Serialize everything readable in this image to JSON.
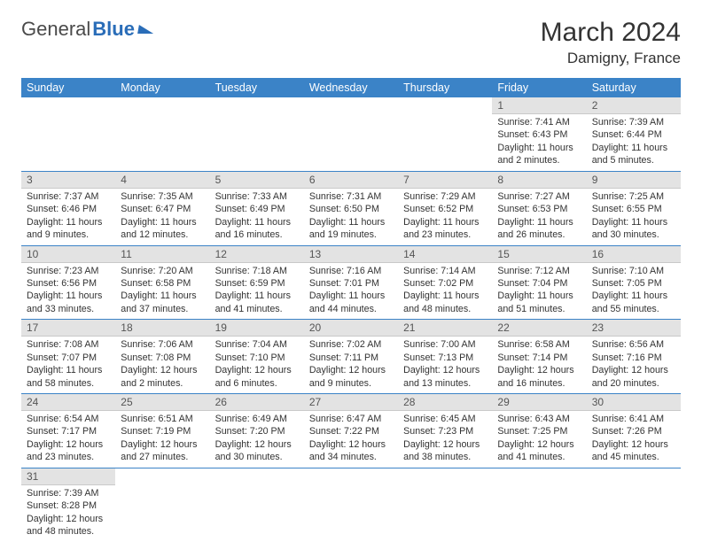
{
  "logo": {
    "part1": "General",
    "part2": "Blue"
  },
  "title": "March 2024",
  "location": "Damigny, France",
  "colors": {
    "header_bg": "#3b83c7",
    "header_fg": "#ffffff",
    "daynum_bg": "#e3e3e3",
    "row_border": "#3b83c7",
    "logo_accent": "#2a6db8"
  },
  "weekdays": [
    "Sunday",
    "Monday",
    "Tuesday",
    "Wednesday",
    "Thursday",
    "Friday",
    "Saturday"
  ],
  "weeks": [
    [
      null,
      null,
      null,
      null,
      null,
      {
        "n": "1",
        "sunrise": "Sunrise: 7:41 AM",
        "sunset": "Sunset: 6:43 PM",
        "daylight": "Daylight: 11 hours and 2 minutes."
      },
      {
        "n": "2",
        "sunrise": "Sunrise: 7:39 AM",
        "sunset": "Sunset: 6:44 PM",
        "daylight": "Daylight: 11 hours and 5 minutes."
      }
    ],
    [
      {
        "n": "3",
        "sunrise": "Sunrise: 7:37 AM",
        "sunset": "Sunset: 6:46 PM",
        "daylight": "Daylight: 11 hours and 9 minutes."
      },
      {
        "n": "4",
        "sunrise": "Sunrise: 7:35 AM",
        "sunset": "Sunset: 6:47 PM",
        "daylight": "Daylight: 11 hours and 12 minutes."
      },
      {
        "n": "5",
        "sunrise": "Sunrise: 7:33 AM",
        "sunset": "Sunset: 6:49 PM",
        "daylight": "Daylight: 11 hours and 16 minutes."
      },
      {
        "n": "6",
        "sunrise": "Sunrise: 7:31 AM",
        "sunset": "Sunset: 6:50 PM",
        "daylight": "Daylight: 11 hours and 19 minutes."
      },
      {
        "n": "7",
        "sunrise": "Sunrise: 7:29 AM",
        "sunset": "Sunset: 6:52 PM",
        "daylight": "Daylight: 11 hours and 23 minutes."
      },
      {
        "n": "8",
        "sunrise": "Sunrise: 7:27 AM",
        "sunset": "Sunset: 6:53 PM",
        "daylight": "Daylight: 11 hours and 26 minutes."
      },
      {
        "n": "9",
        "sunrise": "Sunrise: 7:25 AM",
        "sunset": "Sunset: 6:55 PM",
        "daylight": "Daylight: 11 hours and 30 minutes."
      }
    ],
    [
      {
        "n": "10",
        "sunrise": "Sunrise: 7:23 AM",
        "sunset": "Sunset: 6:56 PM",
        "daylight": "Daylight: 11 hours and 33 minutes."
      },
      {
        "n": "11",
        "sunrise": "Sunrise: 7:20 AM",
        "sunset": "Sunset: 6:58 PM",
        "daylight": "Daylight: 11 hours and 37 minutes."
      },
      {
        "n": "12",
        "sunrise": "Sunrise: 7:18 AM",
        "sunset": "Sunset: 6:59 PM",
        "daylight": "Daylight: 11 hours and 41 minutes."
      },
      {
        "n": "13",
        "sunrise": "Sunrise: 7:16 AM",
        "sunset": "Sunset: 7:01 PM",
        "daylight": "Daylight: 11 hours and 44 minutes."
      },
      {
        "n": "14",
        "sunrise": "Sunrise: 7:14 AM",
        "sunset": "Sunset: 7:02 PM",
        "daylight": "Daylight: 11 hours and 48 minutes."
      },
      {
        "n": "15",
        "sunrise": "Sunrise: 7:12 AM",
        "sunset": "Sunset: 7:04 PM",
        "daylight": "Daylight: 11 hours and 51 minutes."
      },
      {
        "n": "16",
        "sunrise": "Sunrise: 7:10 AM",
        "sunset": "Sunset: 7:05 PM",
        "daylight": "Daylight: 11 hours and 55 minutes."
      }
    ],
    [
      {
        "n": "17",
        "sunrise": "Sunrise: 7:08 AM",
        "sunset": "Sunset: 7:07 PM",
        "daylight": "Daylight: 11 hours and 58 minutes."
      },
      {
        "n": "18",
        "sunrise": "Sunrise: 7:06 AM",
        "sunset": "Sunset: 7:08 PM",
        "daylight": "Daylight: 12 hours and 2 minutes."
      },
      {
        "n": "19",
        "sunrise": "Sunrise: 7:04 AM",
        "sunset": "Sunset: 7:10 PM",
        "daylight": "Daylight: 12 hours and 6 minutes."
      },
      {
        "n": "20",
        "sunrise": "Sunrise: 7:02 AM",
        "sunset": "Sunset: 7:11 PM",
        "daylight": "Daylight: 12 hours and 9 minutes."
      },
      {
        "n": "21",
        "sunrise": "Sunrise: 7:00 AM",
        "sunset": "Sunset: 7:13 PM",
        "daylight": "Daylight: 12 hours and 13 minutes."
      },
      {
        "n": "22",
        "sunrise": "Sunrise: 6:58 AM",
        "sunset": "Sunset: 7:14 PM",
        "daylight": "Daylight: 12 hours and 16 minutes."
      },
      {
        "n": "23",
        "sunrise": "Sunrise: 6:56 AM",
        "sunset": "Sunset: 7:16 PM",
        "daylight": "Daylight: 12 hours and 20 minutes."
      }
    ],
    [
      {
        "n": "24",
        "sunrise": "Sunrise: 6:54 AM",
        "sunset": "Sunset: 7:17 PM",
        "daylight": "Daylight: 12 hours and 23 minutes."
      },
      {
        "n": "25",
        "sunrise": "Sunrise: 6:51 AM",
        "sunset": "Sunset: 7:19 PM",
        "daylight": "Daylight: 12 hours and 27 minutes."
      },
      {
        "n": "26",
        "sunrise": "Sunrise: 6:49 AM",
        "sunset": "Sunset: 7:20 PM",
        "daylight": "Daylight: 12 hours and 30 minutes."
      },
      {
        "n": "27",
        "sunrise": "Sunrise: 6:47 AM",
        "sunset": "Sunset: 7:22 PM",
        "daylight": "Daylight: 12 hours and 34 minutes."
      },
      {
        "n": "28",
        "sunrise": "Sunrise: 6:45 AM",
        "sunset": "Sunset: 7:23 PM",
        "daylight": "Daylight: 12 hours and 38 minutes."
      },
      {
        "n": "29",
        "sunrise": "Sunrise: 6:43 AM",
        "sunset": "Sunset: 7:25 PM",
        "daylight": "Daylight: 12 hours and 41 minutes."
      },
      {
        "n": "30",
        "sunrise": "Sunrise: 6:41 AM",
        "sunset": "Sunset: 7:26 PM",
        "daylight": "Daylight: 12 hours and 45 minutes."
      }
    ],
    [
      {
        "n": "31",
        "sunrise": "Sunrise: 7:39 AM",
        "sunset": "Sunset: 8:28 PM",
        "daylight": "Daylight: 12 hours and 48 minutes."
      },
      null,
      null,
      null,
      null,
      null,
      null
    ]
  ]
}
